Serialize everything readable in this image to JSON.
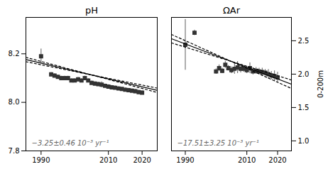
{
  "chart_data": [
    {
      "type": "scatter",
      "title": "pH",
      "xlim": [
        1985.5,
        2024.5
      ],
      "xticks": [
        1990,
        2010,
        2020
      ],
      "ylim": [
        7.8,
        8.35
      ],
      "yticks": [
        7.8,
        {
          "value": 8.0,
          "label": "8.0"
        },
        8.2
      ],
      "annotations": [
        {
          "text": "−3.25±0.46 10⁻³ yr⁻¹",
          "color": "#666666"
        }
      ],
      "series": [
        {
          "type": "scatter",
          "marker": "square",
          "color": "#333333",
          "x": [
            1990,
            1993,
            1994,
            1995,
            1996,
            1997,
            1998,
            1999,
            2000,
            2001,
            2002,
            2003,
            2004,
            2005,
            2006,
            2007,
            2008,
            2009,
            2010,
            2011,
            2012,
            2013,
            2014,
            2015,
            2016,
            2017,
            2018,
            2019,
            2020
          ],
          "values": [
            8.19,
            8.115,
            8.11,
            8.105,
            8.1,
            8.1,
            8.1,
            8.09,
            8.09,
            8.095,
            8.09,
            8.1,
            8.09,
            8.08,
            8.077,
            8.075,
            8.073,
            8.068,
            8.065,
            8.062,
            8.06,
            8.057,
            8.055,
            8.052,
            8.05,
            8.048,
            8.046,
            8.042,
            8.04
          ],
          "errors": [
            0.03,
            0.008,
            0.008,
            0.008,
            0.008,
            0.008,
            0.008,
            0.008,
            0.008,
            0.008,
            0.008,
            0.008,
            0.008,
            0.008,
            0.008,
            0.008,
            0.012,
            0.008,
            0.008,
            0.008,
            0.008,
            0.008,
            0.008,
            0.008,
            0.008,
            0.008,
            0.008,
            0.008,
            0.008
          ]
        },
        {
          "type": "line",
          "line_style": "solid",
          "color": "#000000",
          "x": [
            1985.5,
            2024.5
          ],
          "values": [
            8.176375,
            8.049625
          ]
        },
        {
          "type": "line",
          "line_style": "dashed",
          "color": "#000000",
          "x": [
            1985.5,
            2024.5
          ],
          "values": [
            8.167405,
            8.058595
          ]
        },
        {
          "type": "line",
          "line_style": "dashed",
          "color": "#000000",
          "x": [
            1985.5,
            2024.5
          ],
          "values": [
            8.185345,
            8.040655
          ]
        }
      ]
    },
    {
      "type": "scatter",
      "title": "ΩAr",
      "ylabel": "0-200m",
      "xlim": [
        1985.5,
        2024.5
      ],
      "xticks": [
        1990,
        2010,
        2020
      ],
      "ylim": [
        0.85,
        2.85
      ],
      "yticks": [
        {
          "value": 1.0,
          "label": "1.0"
        },
        1.5,
        {
          "value": 2.0,
          "label": "2.0"
        },
        2.5
      ],
      "annotations": [
        {
          "text": "−17.51±3.25 10⁻³ yr⁻¹",
          "color": "#666666"
        }
      ],
      "series": [
        {
          "type": "scatter",
          "marker": "square",
          "color": "#333333",
          "x": [
            1990,
            1993,
            2000,
            2001,
            2002,
            2003,
            2004,
            2005,
            2006,
            2007,
            2008,
            2009,
            2010,
            2011,
            2012,
            2013,
            2014,
            2015,
            2016,
            2017,
            2018,
            2019,
            2020
          ],
          "values": [
            2.44,
            2.62,
            2.04,
            2.09,
            2.05,
            2.14,
            2.09,
            2.06,
            2.08,
            2.1,
            2.08,
            2.08,
            2.06,
            2.09,
            2.04,
            2.05,
            2.04,
            2.03,
            2.02,
            2.0,
            1.98,
            1.97,
            1.95
          ],
          "errors": [
            0.38,
            0.04,
            0.04,
            0.05,
            0.04,
            0.05,
            0.04,
            0.05,
            0.08,
            0.09,
            0.06,
            0.05,
            0.05,
            0.08,
            0.05,
            0.05,
            0.05,
            0.06,
            0.05,
            0.07,
            0.06,
            0.08,
            0.08
          ]
        },
        {
          "type": "line",
          "line_style": "solid",
          "color": "#000000",
          "x": [
            1985.5,
            2024.5
          ],
          "values": [
            2.531445,
            1.848555
          ]
        },
        {
          "type": "line",
          "line_style": "dashed",
          "color": "#000000",
          "x": [
            1985.5,
            2024.5
          ],
          "values": [
            2.46807,
            1.91193
          ]
        },
        {
          "type": "line",
          "line_style": "dashed",
          "color": "#000000",
          "x": [
            1985.5,
            2024.5
          ],
          "values": [
            2.59482,
            1.78518
          ]
        }
      ]
    }
  ]
}
